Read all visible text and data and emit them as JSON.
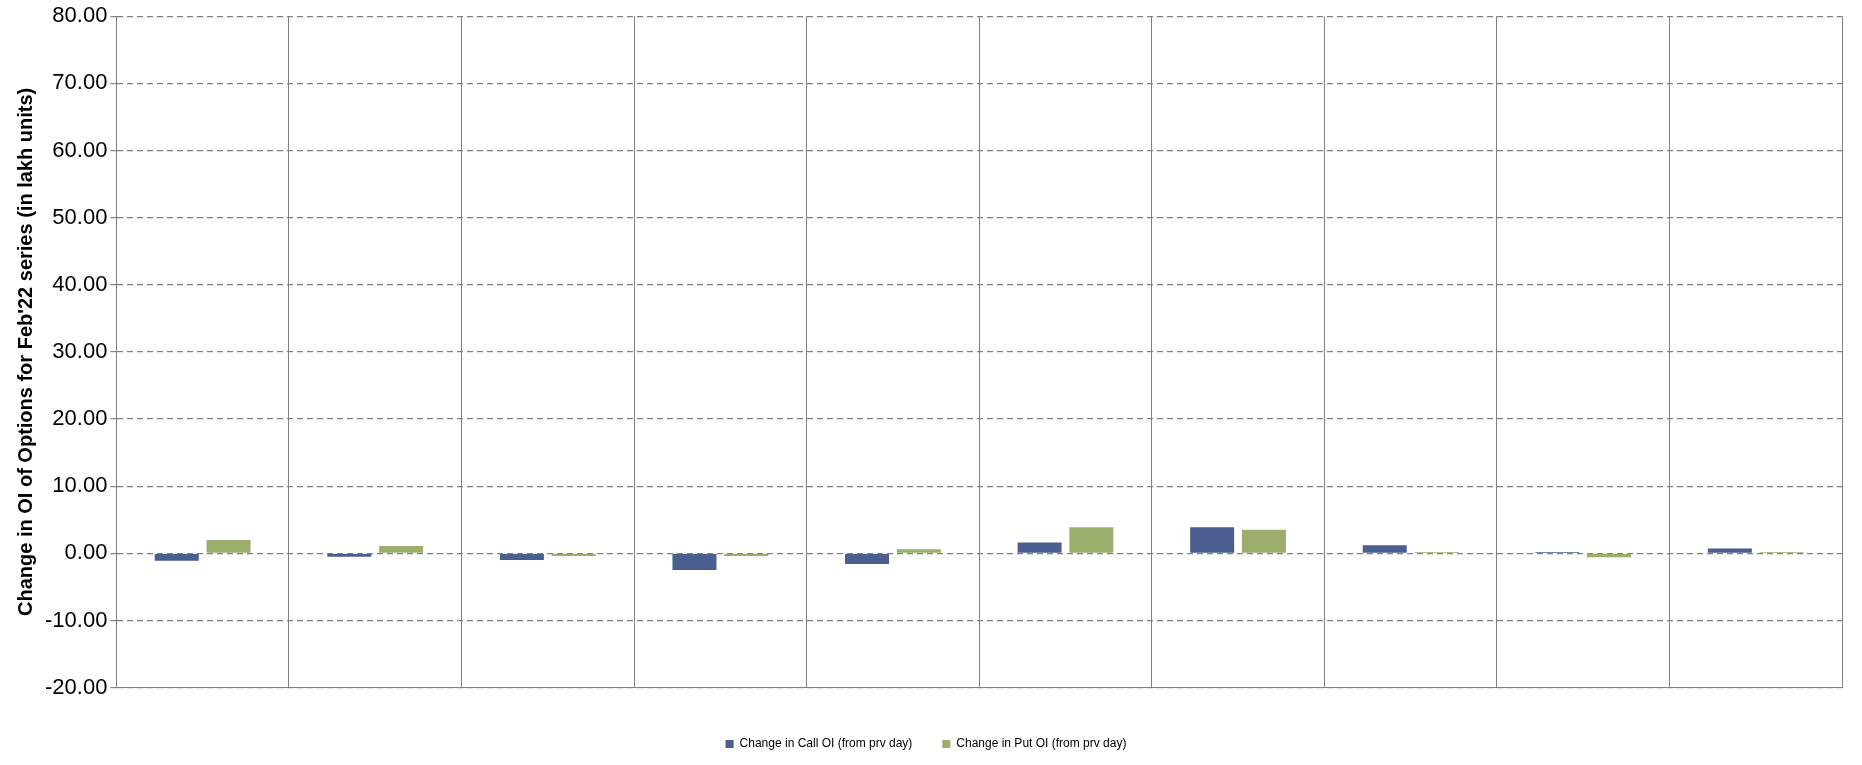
{
  "chart_data": {
    "type": "bar",
    "ylabel": "Change in OI of Options for Feb'22 series (in lakh units)",
    "categories": [
      null,
      null,
      null,
      null,
      null,
      null,
      null,
      null,
      null,
      null
    ],
    "series": [
      {
        "name": "Change in Call OI (from prv day)",
        "color": "#4a5e8f",
        "values": [
          -1.1,
          -0.5,
          -1.0,
          -2.5,
          -1.6,
          1.6,
          3.9,
          1.2,
          0.2,
          0.7
        ]
      },
      {
        "name": "Change in Put OI (from prv day)",
        "color": "#9bae6c",
        "values": [
          2.0,
          1.1,
          -0.4,
          -0.4,
          0.6,
          3.9,
          3.5,
          0.2,
          -0.6,
          0.2
        ]
      }
    ],
    "ylim": [
      -20,
      80
    ],
    "yticks": [
      {
        "value": -20,
        "label": "-20.00"
      },
      {
        "value": -10,
        "label": "-10.00"
      },
      {
        "value": 0,
        "label": "0.00"
      },
      {
        "value": 10,
        "label": "10.00"
      },
      {
        "value": 20,
        "label": "20.00"
      },
      {
        "value": 30,
        "label": "30.00"
      },
      {
        "value": 40,
        "label": "40.00"
      },
      {
        "value": 50,
        "label": "50.00"
      },
      {
        "value": 60,
        "label": "60.00"
      },
      {
        "value": 70,
        "label": "70.00"
      },
      {
        "value": 80,
        "label": "80.00"
      }
    ],
    "grid": true,
    "legend": "bottom"
  }
}
